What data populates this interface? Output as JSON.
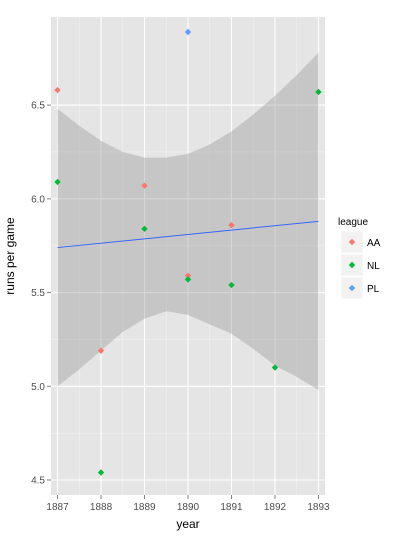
{
  "chart_data": {
    "type": "scatter",
    "xlabel": "year",
    "ylabel": "runs per game",
    "xlim": [
      1886.85,
      1893.15
    ],
    "ylim": [
      4.42,
      6.97
    ],
    "x_ticks": [
      1887,
      1888,
      1889,
      1890,
      1891,
      1892,
      1893
    ],
    "x_tick_labels": [
      "1887",
      "1888",
      "1889",
      "1890",
      "1891",
      "1892",
      "1893"
    ],
    "y_ticks": [
      4.5,
      5.0,
      5.5,
      6.0,
      6.5
    ],
    "y_tick_labels": [
      "4.5",
      "5.0",
      "5.5",
      "6.0",
      "6.5"
    ],
    "legend_title": "league",
    "legend_position": "right",
    "grid": true,
    "series": [
      {
        "name": "AA",
        "color": "#F8766D",
        "points": [
          {
            "x": 1887,
            "y": 6.58
          },
          {
            "x": 1888,
            "y": 5.19
          },
          {
            "x": 1889,
            "y": 6.07
          },
          {
            "x": 1890,
            "y": 5.59
          },
          {
            "x": 1891,
            "y": 5.86
          }
        ]
      },
      {
        "name": "NL",
        "color": "#00BA38",
        "points": [
          {
            "x": 1887,
            "y": 6.09
          },
          {
            "x": 1888,
            "y": 4.54
          },
          {
            "x": 1889,
            "y": 5.84
          },
          {
            "x": 1890,
            "y": 5.57
          },
          {
            "x": 1891,
            "y": 5.54
          },
          {
            "x": 1892,
            "y": 5.1
          },
          {
            "x": 1893,
            "y": 6.57
          }
        ]
      },
      {
        "name": "PL",
        "color": "#619CFF",
        "points": [
          {
            "x": 1890,
            "y": 6.89
          }
        ]
      }
    ],
    "trend_line": {
      "color": "#3366FF",
      "x": [
        1887,
        1893
      ],
      "y": [
        5.74,
        5.88
      ]
    },
    "confidence_band": {
      "color": "#999999",
      "x": [
        1887,
        1887.5,
        1888,
        1888.5,
        1889,
        1889.5,
        1890,
        1890.5,
        1891,
        1891.5,
        1892,
        1892.5,
        1893
      ],
      "upper": [
        6.48,
        6.39,
        6.31,
        6.25,
        6.22,
        6.22,
        6.24,
        6.29,
        6.36,
        6.45,
        6.55,
        6.66,
        6.78
      ],
      "lower": [
        5.0,
        5.09,
        5.19,
        5.29,
        5.36,
        5.4,
        5.38,
        5.33,
        5.28,
        5.2,
        5.11,
        5.05,
        4.98
      ]
    }
  }
}
